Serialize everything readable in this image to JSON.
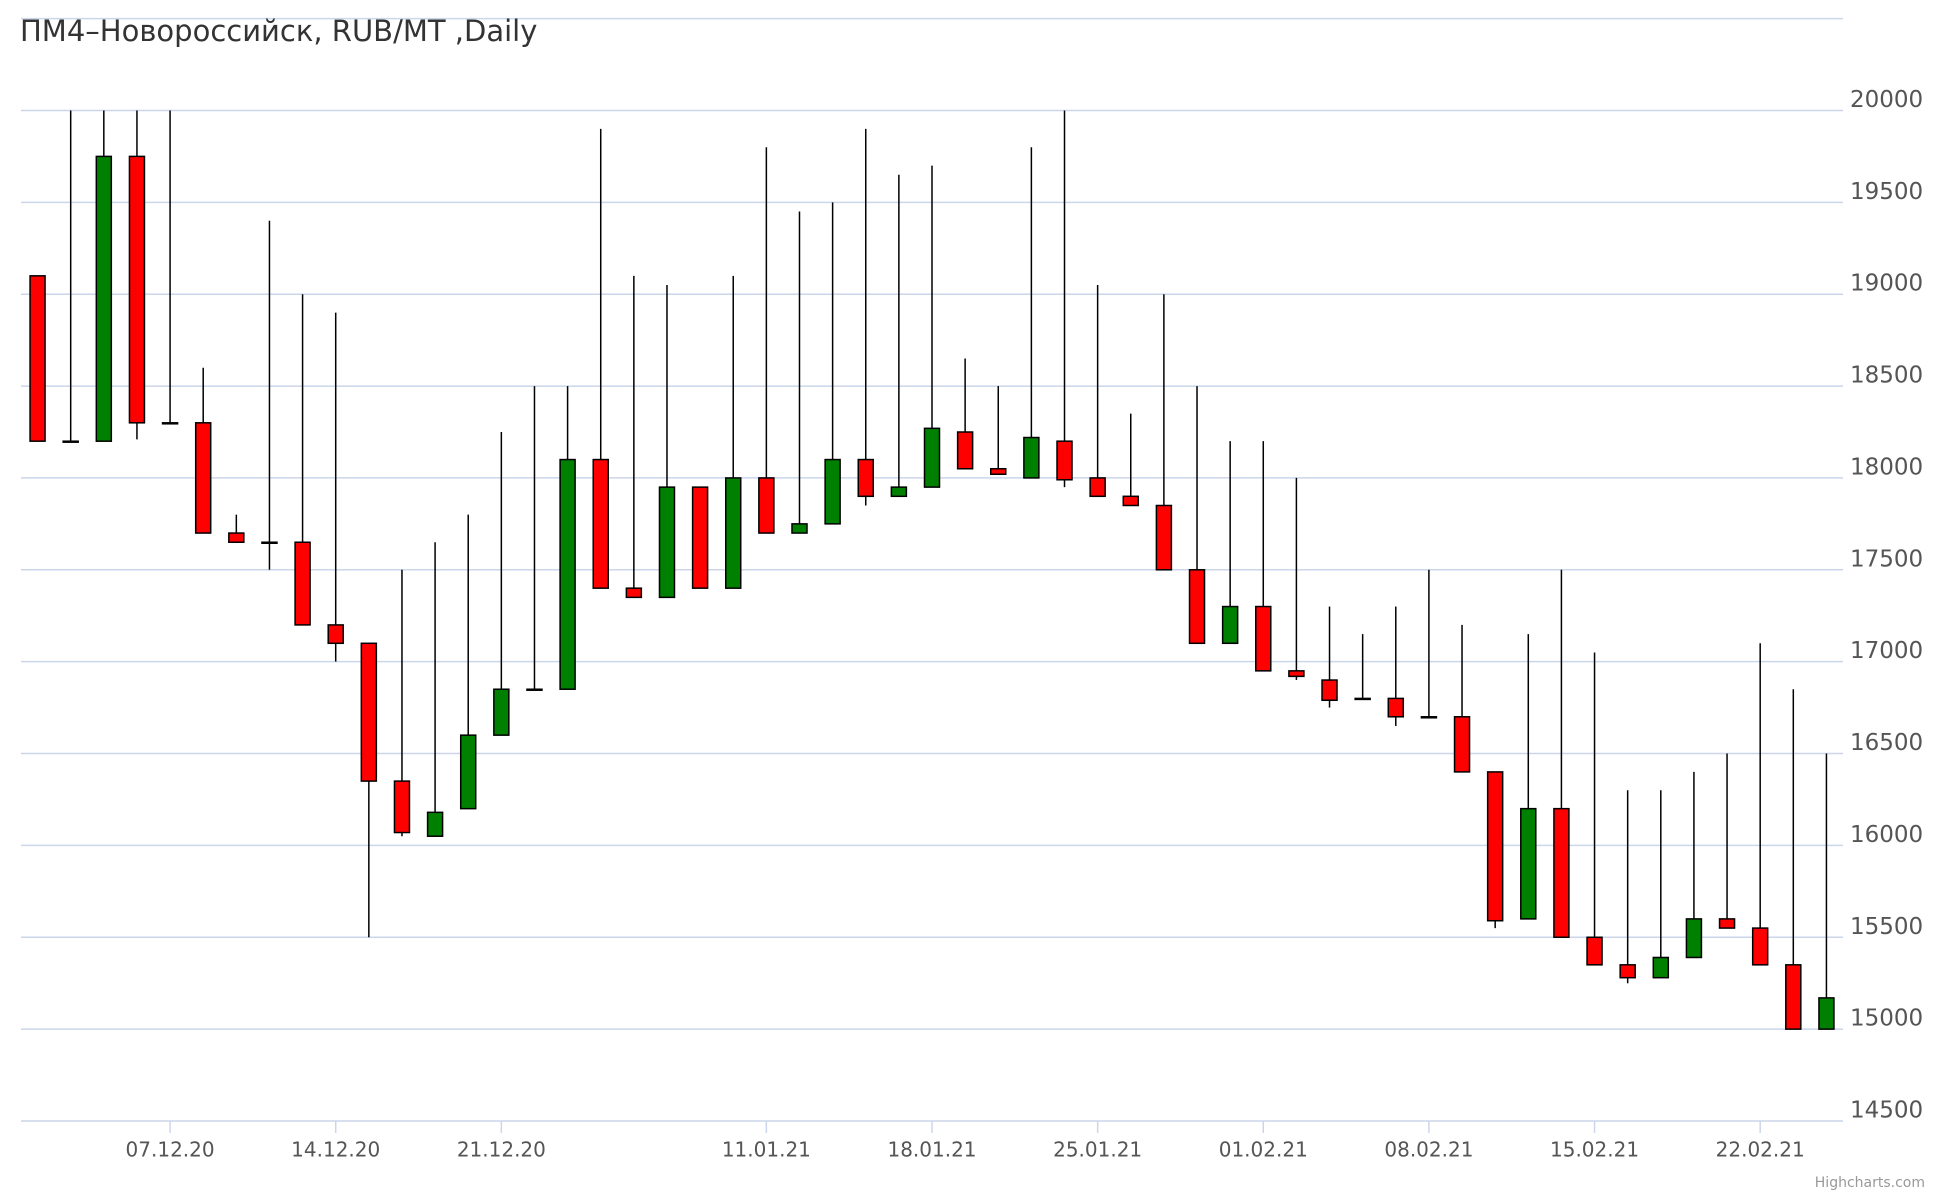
{
  "chart_data": {
    "type": "candlestick",
    "title": "ПМ4–Новороссийск, RUB/MT ,Daily",
    "credit": "Highcharts.com",
    "categories": [
      null,
      null,
      null,
      null,
      "07.12.20",
      null,
      null,
      null,
      null,
      "14.12.20",
      null,
      null,
      null,
      null,
      "21.12.20",
      null,
      null,
      null,
      null,
      null,
      null,
      null,
      "11.01.21",
      null,
      null,
      null,
      null,
      "18.01.21",
      null,
      null,
      null,
      null,
      "25.01.21",
      null,
      null,
      null,
      null,
      "01.02.21",
      null,
      null,
      null,
      null,
      "08.02.21",
      null,
      null,
      null,
      null,
      "15.02.21",
      null,
      null,
      null,
      null,
      "22.02.21",
      null,
      null
    ],
    "open": [
      19100,
      18200,
      18200,
      19750,
      18300,
      18300,
      17700,
      17650,
      17650,
      17200,
      17100,
      16350,
      16050,
      16200,
      16600,
      16850,
      16850,
      18100,
      17400,
      17350,
      17950,
      17400,
      18000,
      17700,
      17750,
      18100,
      17900,
      17950,
      18250,
      18050,
      18000,
      18200,
      18000,
      17900,
      17850,
      17500,
      17100,
      17300,
      16950,
      16900,
      16800,
      16800,
      16700,
      16700,
      16400,
      15600,
      16200,
      15500,
      15350,
      15280,
      15390,
      15600,
      15550,
      15350,
      15000
    ],
    "high": [
      19100,
      20000,
      20000,
      20000,
      20000,
      18600,
      17800,
      19400,
      19000,
      18900,
      17100,
      17500,
      17650,
      17800,
      18250,
      18500,
      18500,
      19900,
      19100,
      19050,
      17950,
      19100,
      19800,
      19450,
      19500,
      19900,
      19650,
      19700,
      18650,
      18500,
      19800,
      20000,
      19050,
      18350,
      19000,
      18500,
      18200,
      18200,
      18000,
      17300,
      17150,
      17300,
      17500,
      17200,
      16400,
      17150,
      17500,
      17050,
      16300,
      16300,
      16400,
      16500,
      17100,
      16850,
      16500
    ],
    "low": [
      18200,
      18200,
      18200,
      18210,
      18300,
      17700,
      17650,
      17500,
      17200,
      17000,
      15500,
      16050,
      16050,
      16200,
      16600,
      16850,
      16850,
      17400,
      17350,
      17350,
      17400,
      17400,
      17700,
      17700,
      17750,
      17850,
      17900,
      17950,
      18050,
      18020,
      18000,
      17950,
      17900,
      17850,
      17500,
      17100,
      17100,
      16950,
      16900,
      16750,
      16800,
      16650,
      16700,
      16400,
      15550,
      15600,
      15500,
      15350,
      15250,
      15280,
      15390,
      15550,
      15350,
      15000,
      15000
    ],
    "close": [
      18200,
      18200,
      19750,
      18300,
      18300,
      17700,
      17650,
      17650,
      17200,
      17100,
      16350,
      16070,
      16180,
      16600,
      16850,
      16850,
      18100,
      17400,
      17350,
      17950,
      17400,
      18000,
      17700,
      17750,
      18100,
      17900,
      17950,
      18270,
      18050,
      18020,
      18220,
      17990,
      17900,
      17850,
      17500,
      17100,
      17300,
      16950,
      16920,
      16790,
      16800,
      16700,
      16700,
      16400,
      15590,
      16200,
      15500,
      15350,
      15280,
      15390,
      15600,
      15550,
      15350,
      15000,
      15170
    ],
    "up_color": "#008000",
    "down_color": "#ff0000",
    "ylim": [
      14500,
      20500
    ],
    "yticks": [
      14500,
      15000,
      15500,
      16000,
      16500,
      17000,
      17500,
      18000,
      18500,
      19000,
      19500,
      20000
    ],
    "grid": true
  }
}
